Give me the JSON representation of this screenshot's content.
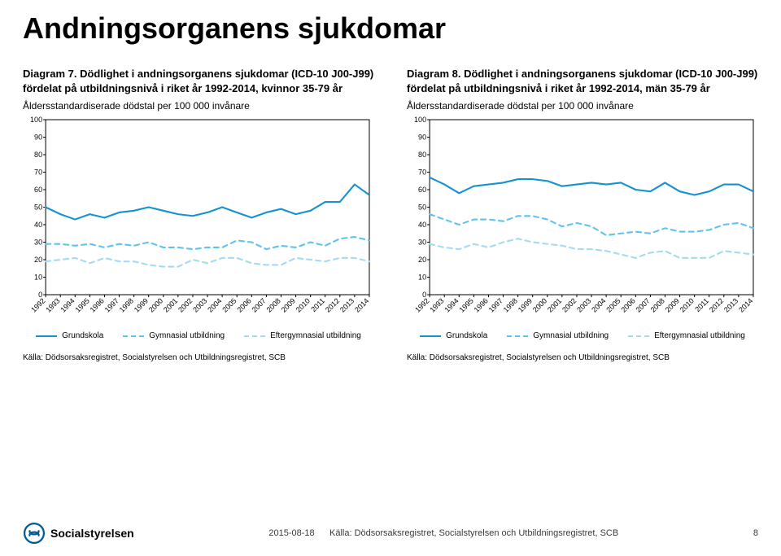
{
  "page_title": "Andningsorganens sjukdomar",
  "series_labels": {
    "grundskola": "Grundskola",
    "gymnasial": "Gymnasial utbildning",
    "eftergymnasial": "Eftergymnasial utbildning"
  },
  "series_colors": {
    "grundskola": "#1592d0",
    "gymnasial": "#5ec4ed",
    "eftergymnasial": "#a3dbf2"
  },
  "series_dash": {
    "grundskola": "",
    "gymnasial": "6,5",
    "eftergymnasial": "6,5"
  },
  "line_width": 2.1,
  "x_years": [
    1992,
    1993,
    1994,
    1995,
    1996,
    1997,
    1998,
    1999,
    2000,
    2001,
    2002,
    2003,
    2004,
    2005,
    2006,
    2007,
    2008,
    2009,
    2010,
    2011,
    2012,
    2013,
    2014
  ],
  "y": {
    "min": 0,
    "max": 100,
    "step": 10
  },
  "background_color": "#ffffff",
  "border_color": "#000000",
  "grid_color": "#808080",
  "grid_opacity": 0.0,
  "label_fontsize": 9,
  "axis_fontfamily": "Century Gothic",
  "left": {
    "title_line1": "Diagram 7. Dödlighet i andningsorganens sjukdomar (ICD-10 J00-J99) fördelat på utbildningsnivå i riket år 1992-2014, kvinnor 35-79 år",
    "subtitle": "Åldersstandardiserade dödstal per 100 000 invånare",
    "source": "Källa: Dödsorsaksregistret, Socialstyrelsen och Utbildningsregistret, SCB",
    "data": {
      "grundskola": [
        50,
        46,
        43,
        46,
        44,
        47,
        48,
        50,
        48,
        46,
        45,
        47,
        50,
        47,
        44,
        47,
        49,
        46,
        48,
        53,
        53,
        63,
        57
      ],
      "gymnasial": [
        29,
        29,
        28,
        29,
        27,
        29,
        28,
        30,
        27,
        27,
        26,
        27,
        27,
        31,
        30,
        26,
        28,
        27,
        30,
        28,
        32,
        33,
        31
      ],
      "eftergymnasial": [
        19,
        20,
        21,
        18,
        21,
        19,
        19,
        17,
        16,
        16,
        20,
        18,
        21,
        21,
        18,
        17,
        17,
        21,
        20,
        19,
        21,
        21,
        19
      ]
    }
  },
  "right": {
    "title_line1": "Diagram 8. Dödlighet i andningsorganens sjukdomar (ICD-10 J00-J99) fördelat på utbildningsnivå i riket år 1992-2014, män 35-79 år",
    "subtitle": "Åldersstandardiserade dödstal per 100 000 invånare",
    "source": "Källa: Dödsorsaksregistret, Socialstyrelsen och Utbildningsregistret, SCB",
    "data": {
      "grundskola": [
        67,
        63,
        58,
        62,
        63,
        64,
        66,
        66,
        65,
        62,
        63,
        64,
        63,
        64,
        60,
        59,
        64,
        59,
        57,
        59,
        63,
        63,
        59
      ],
      "gymnasial": [
        46,
        43,
        40,
        43,
        43,
        42,
        45,
        45,
        43,
        39,
        41,
        39,
        34,
        35,
        36,
        35,
        38,
        36,
        36,
        37,
        40,
        41,
        38
      ],
      "eftergymnasial": [
        29,
        27,
        26,
        29,
        27,
        30,
        32,
        30,
        29,
        28,
        26,
        26,
        25,
        23,
        21,
        24,
        25,
        21,
        21,
        21,
        25,
        24,
        23
      ]
    }
  },
  "footer": {
    "date": "2015-08-18",
    "source": "Källa: Dödsorsaksregistret, Socialstyrelsen och Utbildningsregistret, SCB",
    "page": "8",
    "logo_text": "Socialstyrelsen",
    "logo_color": "#005a9a"
  }
}
